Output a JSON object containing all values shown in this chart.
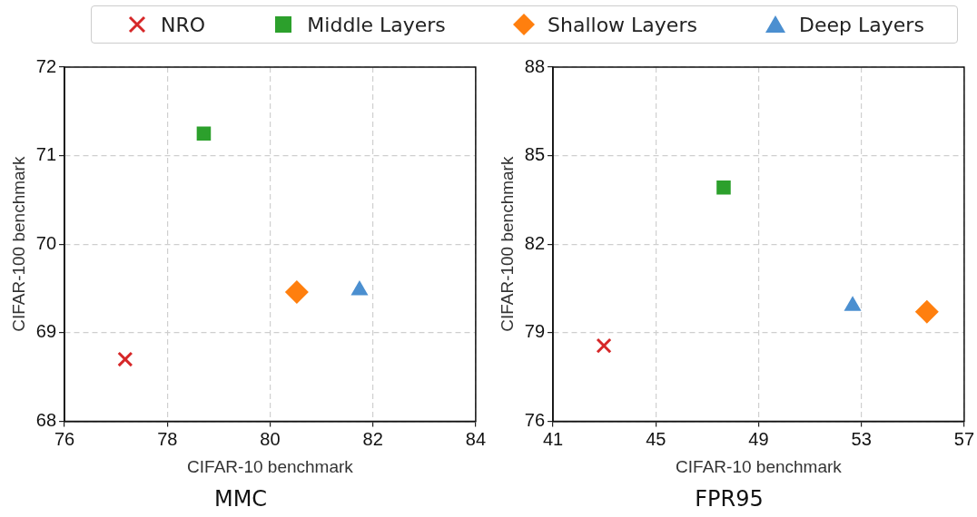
{
  "chart_data": [
    {
      "type": "scatter",
      "title": "MMC",
      "xlabel": "CIFAR-10 benchmark",
      "ylabel": "CIFAR-100 benchmark",
      "xlim": [
        76,
        84
      ],
      "xticks": [
        76,
        78,
        80,
        82,
        84
      ],
      "ylim": [
        68,
        72
      ],
      "yticks": [
        68,
        69,
        70,
        71,
        72
      ],
      "grid": true,
      "legend": "top",
      "series": [
        {
          "name": "NRO",
          "color": "#d62728",
          "marker": "cross",
          "x": [
            77.18
          ],
          "values": [
            68.7
          ]
        },
        {
          "name": "Middle Layers",
          "color": "#2ca02c",
          "marker": "square",
          "x": [
            78.71
          ],
          "values": [
            71.25
          ]
        },
        {
          "name": "Shallow Layers",
          "color": "#ff7f0e",
          "marker": "diamond",
          "x": [
            80.52
          ],
          "values": [
            69.46
          ]
        },
        {
          "name": "Deep Layers",
          "color": "#4b8fd0",
          "marker": "triangle",
          "x": [
            81.74
          ],
          "values": [
            69.48
          ]
        }
      ]
    },
    {
      "type": "scatter",
      "title": "FPR95",
      "xlabel": "CIFAR-10 benchmark",
      "ylabel": "CIFAR-100 benchmark",
      "xlim": [
        41,
        57
      ],
      "xticks": [
        41,
        45,
        49,
        53,
        57
      ],
      "ylim": [
        76,
        88
      ],
      "yticks": [
        76,
        79,
        82,
        85,
        88
      ],
      "grid": true,
      "legend": "top",
      "series": [
        {
          "name": "NRO",
          "color": "#d62728",
          "marker": "cross",
          "x": [
            42.98
          ],
          "values": [
            78.56
          ]
        },
        {
          "name": "Middle Layers",
          "color": "#2ca02c",
          "marker": "square",
          "x": [
            47.64
          ],
          "values": [
            83.92
          ]
        },
        {
          "name": "Shallow Layers",
          "color": "#ff7f0e",
          "marker": "diamond",
          "x": [
            55.55
          ],
          "values": [
            79.71
          ]
        },
        {
          "name": "Deep Layers",
          "color": "#4b8fd0",
          "marker": "triangle",
          "x": [
            52.66
          ],
          "values": [
            79.91
          ]
        }
      ]
    }
  ]
}
